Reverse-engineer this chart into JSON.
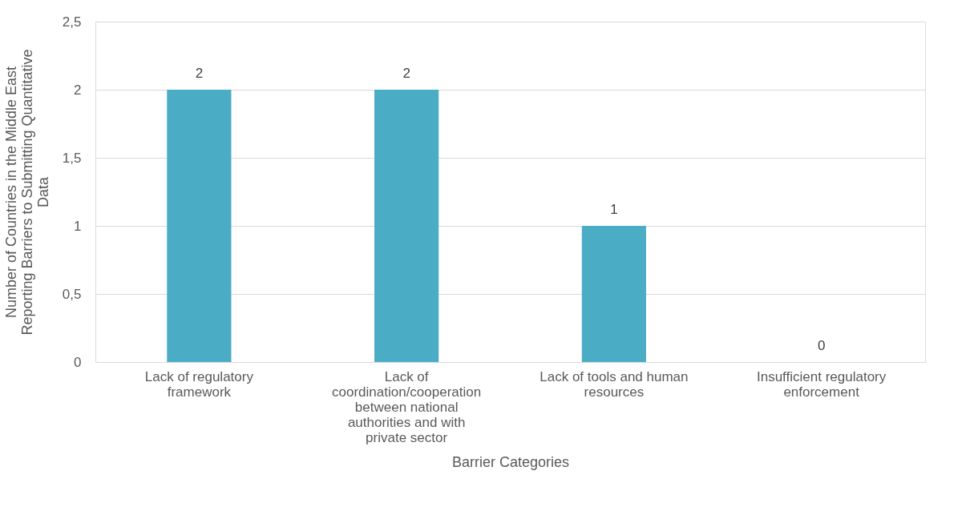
{
  "chart_data": {
    "type": "bar",
    "xlabel": "Barrier Categories",
    "ylabel": "Number of Countries in the Middle East Reporting Barriers to Submitting Quantitative Data",
    "categories": [
      "Lack of regulatory framework",
      "Lack of coordination/cooperation between national authorities and with private sector",
      "Lack of tools and human resources",
      "Insufficient regulatory enforcement"
    ],
    "values": [
      2,
      2,
      1,
      0
    ],
    "color": "#4bacc6",
    "ylim": [
      0,
      2.5
    ],
    "yticks": [
      0,
      {
        "value": 0.5,
        "label": "0,5"
      },
      1,
      {
        "value": 1.5,
        "label": "1,5"
      },
      2,
      {
        "value": 2.5,
        "label": "2,5"
      }
    ],
    "grid": "y",
    "data_labels": true
  }
}
